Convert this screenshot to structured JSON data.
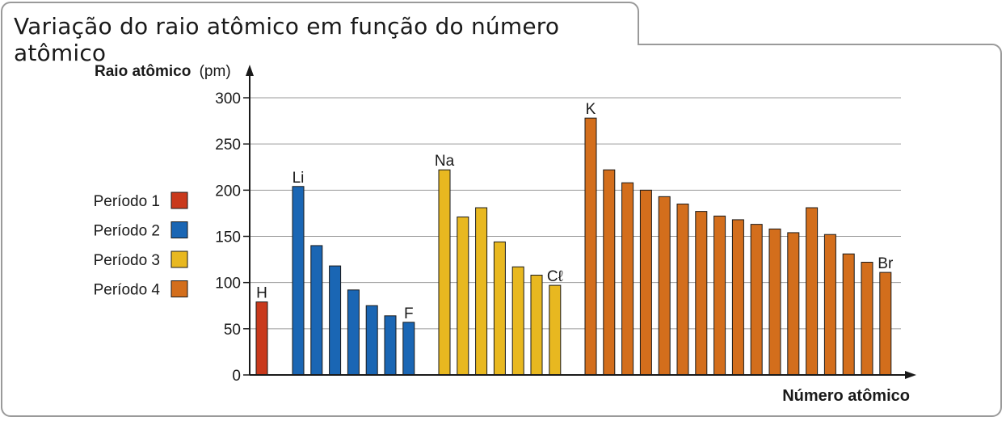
{
  "title": "Variação do raio atômico em função do número atômico",
  "chart_data": {
    "type": "bar",
    "ylabel_bold": "Raio atômico",
    "ylabel_unit": "(pm)",
    "xlabel": "Número atômico",
    "ylim": [
      0,
      300
    ],
    "yticks": [
      0,
      50,
      100,
      150,
      200,
      250,
      300
    ],
    "grid": true,
    "legend_position": "left",
    "series": [
      {
        "name": "Período 1",
        "color": "#c9391c",
        "values": [
          79
        ],
        "labels": {
          "0": "H"
        }
      },
      {
        "name": "Período 2",
        "color": "#1a66b4",
        "values": [
          204,
          140,
          118,
          92,
          75,
          64,
          57
        ],
        "labels": {
          "0": "Li",
          "6": "F"
        }
      },
      {
        "name": "Período 3",
        "color": "#e8b820",
        "values": [
          222,
          171,
          181,
          144,
          117,
          108,
          97
        ],
        "labels": {
          "0": "Na",
          "6": "Cℓ"
        }
      },
      {
        "name": "Período 4",
        "color": "#d36e1c",
        "values": [
          278,
          222,
          208,
          200,
          193,
          185,
          177,
          172,
          168,
          163,
          158,
          154,
          181,
          152,
          131,
          122,
          111
        ],
        "labels": {
          "0": "K",
          "16": "Br"
        }
      }
    ]
  }
}
